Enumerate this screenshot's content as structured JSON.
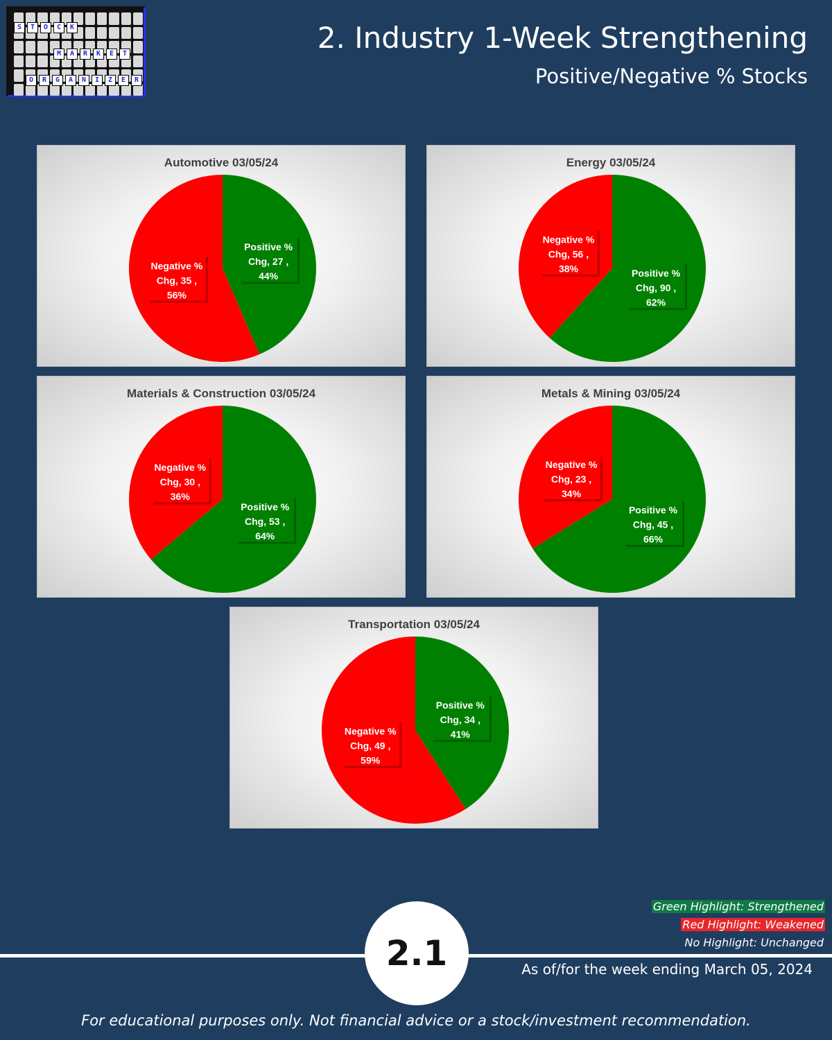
{
  "logo": {
    "words": [
      {
        "letters": [
          "S",
          "T",
          "O",
          "C",
          "K"
        ]
      },
      {
        "letters": [
          "M",
          "A",
          "R",
          "K",
          "E",
          "T"
        ]
      },
      {
        "letters": [
          "O",
          "R",
          "G",
          "A",
          "N",
          "I",
          "Z",
          "E",
          "R"
        ]
      }
    ]
  },
  "header": {
    "title": "2. Industry 1-Week Strengthening",
    "subtitle": "Positive/Negative % Stocks"
  },
  "colors": {
    "positive": "#008000",
    "negative": "#ff0000",
    "background": "#1f3d5f"
  },
  "chart_data": [
    {
      "type": "pie",
      "title": "Automotive 03/05/24",
      "slices": [
        {
          "name": "Positive % Chg",
          "value": 27,
          "percent": "44%",
          "color": "#008000",
          "line1": "Positive %",
          "line2": "Chg,  27 ,",
          "line3": "44%"
        },
        {
          "name": "Negative % Chg",
          "value": 35,
          "percent": "56%",
          "color": "#ff0000",
          "line1": "Negative %",
          "line2": "Chg,  35 ,",
          "line3": "56%"
        }
      ]
    },
    {
      "type": "pie",
      "title": "Energy 03/05/24",
      "slices": [
        {
          "name": "Positive % Chg",
          "value": 90,
          "percent": "62%",
          "color": "#008000",
          "line1": "Positive %",
          "line2": "Chg,  90 ,",
          "line3": "62%"
        },
        {
          "name": "Negative % Chg",
          "value": 56,
          "percent": "38%",
          "color": "#ff0000",
          "line1": "Negative %",
          "line2": "Chg,  56 ,",
          "line3": "38%"
        }
      ]
    },
    {
      "type": "pie",
      "title": "Materials & Construction 03/05/24",
      "slices": [
        {
          "name": "Positive % Chg",
          "value": 53,
          "percent": "64%",
          "color": "#008000",
          "line1": "Positive %",
          "line2": "Chg,  53 ,",
          "line3": "64%"
        },
        {
          "name": "Negative % Chg",
          "value": 30,
          "percent": "36%",
          "color": "#ff0000",
          "line1": "Negative %",
          "line2": "Chg,  30 ,",
          "line3": "36%"
        }
      ]
    },
    {
      "type": "pie",
      "title": "Metals & Mining 03/05/24",
      "slices": [
        {
          "name": "Positive % Chg",
          "value": 45,
          "percent": "66%",
          "color": "#008000",
          "line1": "Positive %",
          "line2": "Chg,  45 ,",
          "line3": "66%"
        },
        {
          "name": "Negative % Chg",
          "value": 23,
          "percent": "34%",
          "color": "#ff0000",
          "line1": "Negative %",
          "line2": "Chg,  23 ,",
          "line3": "34%"
        }
      ]
    },
    {
      "type": "pie",
      "title": "Transportation 03/05/24",
      "slices": [
        {
          "name": "Positive % Chg",
          "value": 34,
          "percent": "41%",
          "color": "#008000",
          "line1": "Positive %",
          "line2": "Chg,  34 ,",
          "line3": "41%"
        },
        {
          "name": "Negative % Chg",
          "value": 49,
          "percent": "59%",
          "color": "#ff0000",
          "line1": "Negative %",
          "line2": "Chg,  49 ,",
          "line3": "59%"
        }
      ]
    }
  ],
  "legend": {
    "green": {
      "text": "Green Highlight: Strengthened",
      "color": "#0f7a44"
    },
    "red": {
      "text": "Red Highlight: Weakened",
      "color": "#e8262b"
    },
    "none": {
      "text": "No Highlight: Unchanged"
    }
  },
  "footer": {
    "page_number": "2.1",
    "as_of": "As of/for the week ending March 05, 2024",
    "disclaimer": "For educational purposes only. Not financial advice or a stock/investment recommendation."
  }
}
